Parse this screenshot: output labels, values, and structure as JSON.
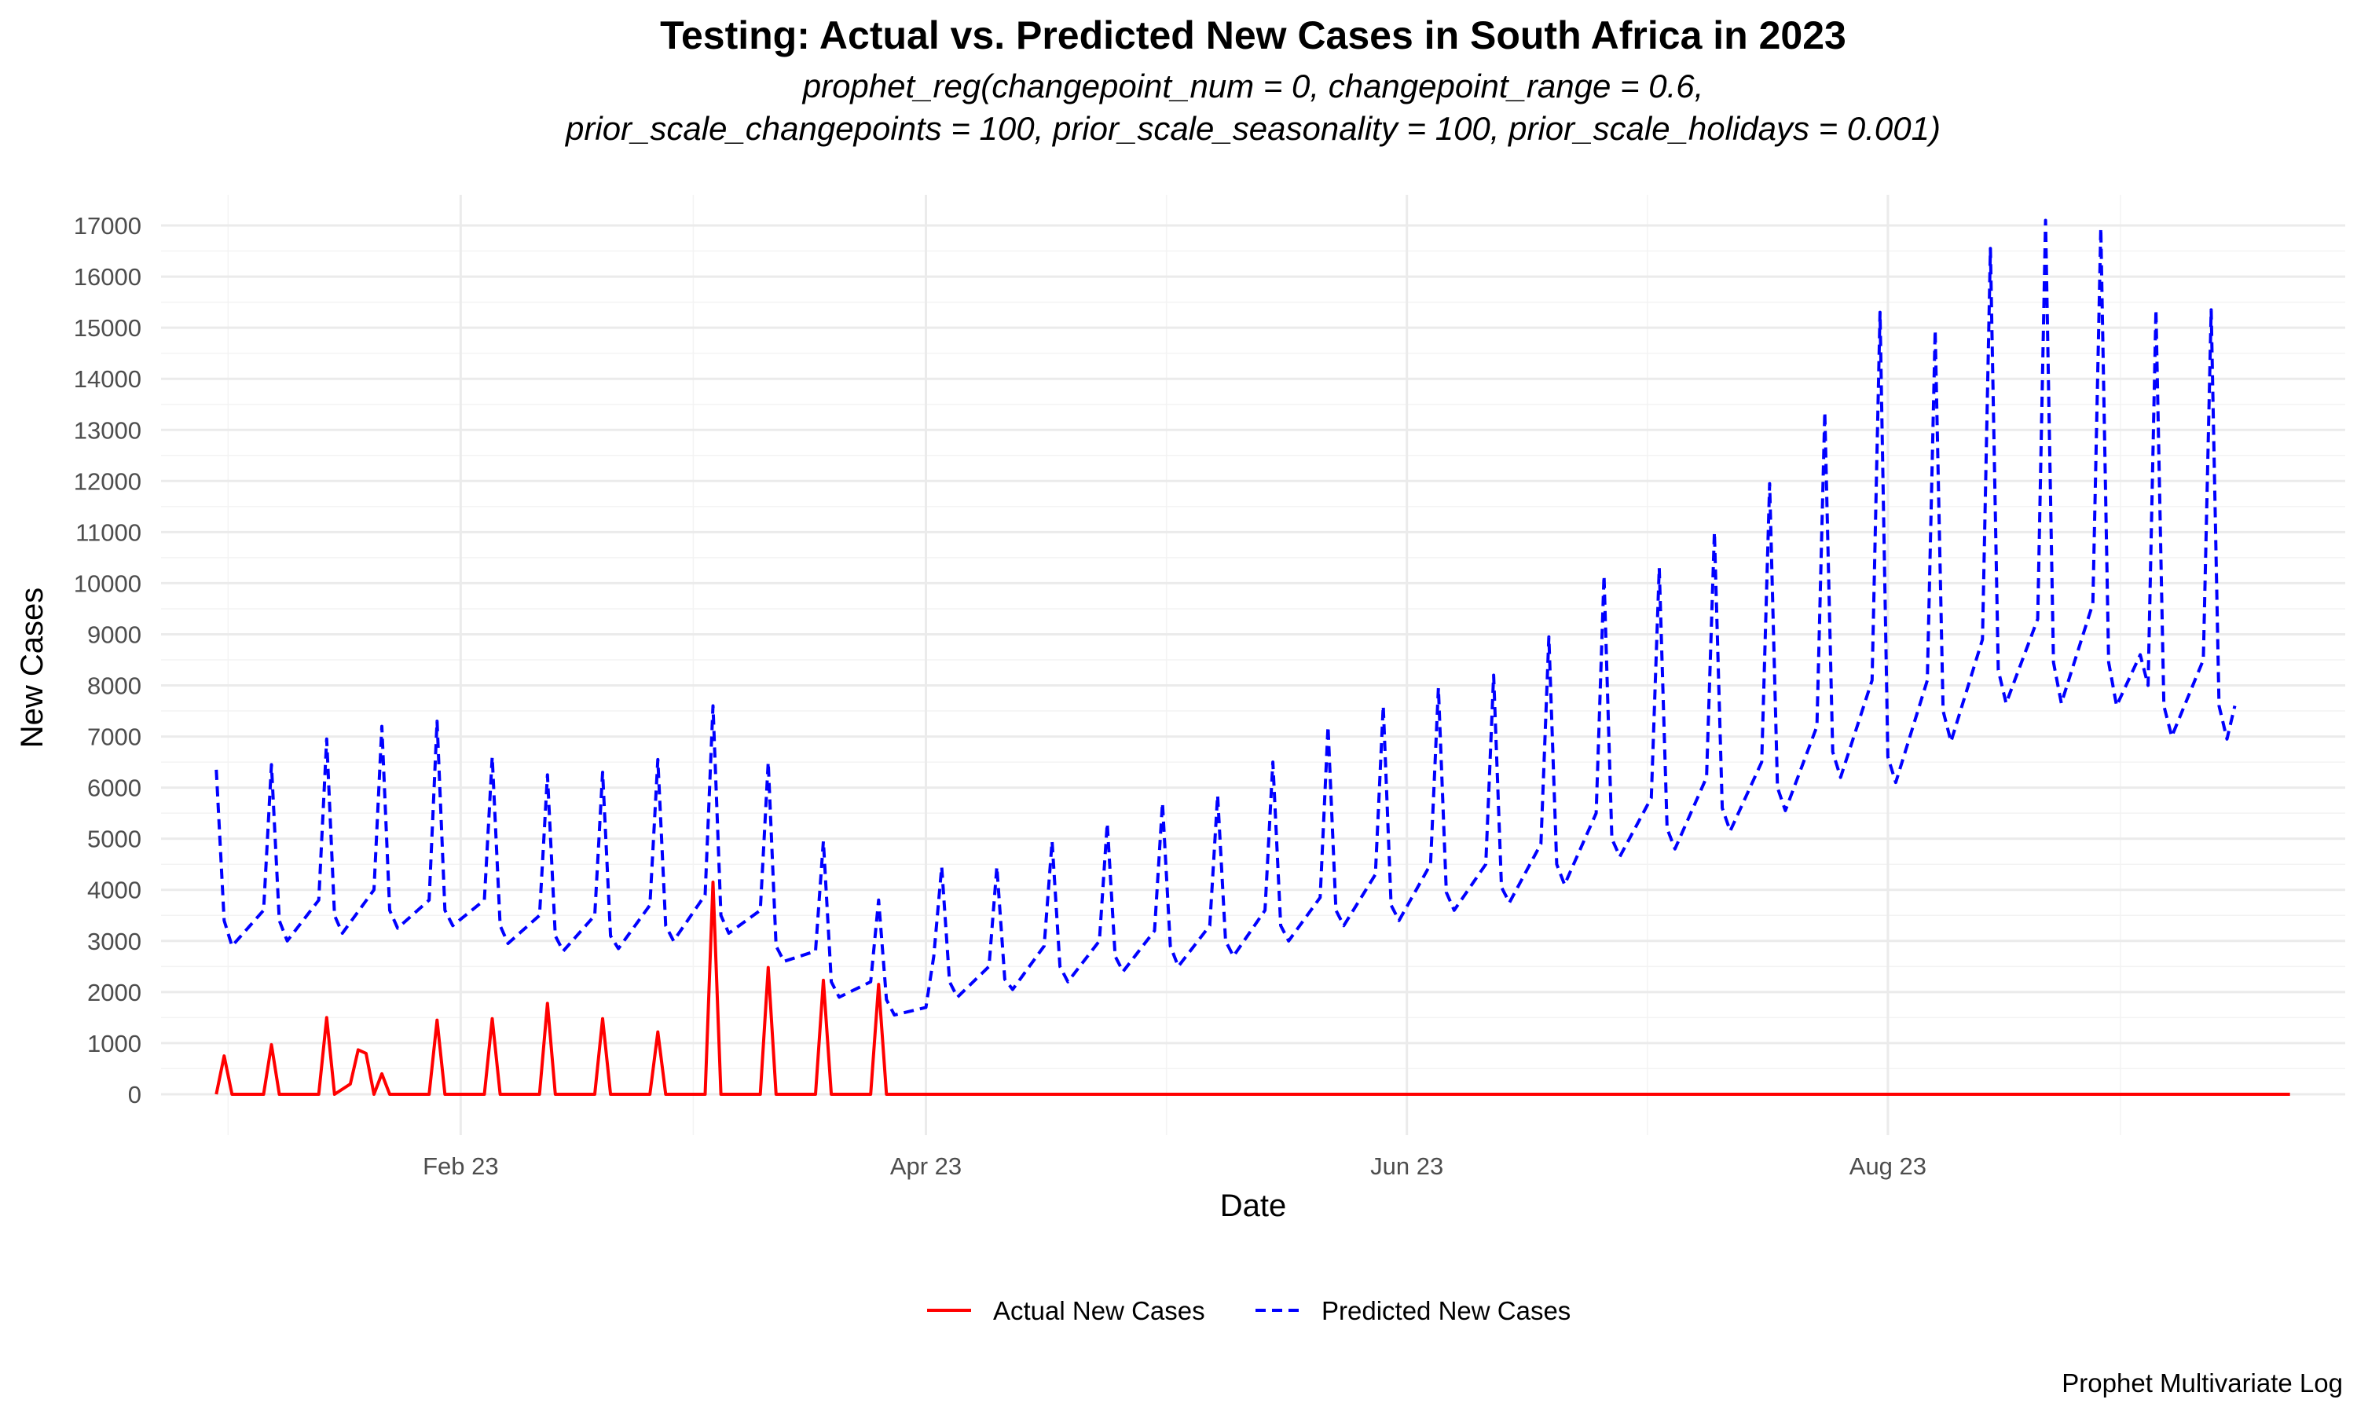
{
  "chart_data": {
    "type": "line",
    "title": "Testing: Actual vs. Predicted New Cases in South Africa in 2023",
    "subtitle_lines": [
      "prophet_reg(changepoint_num = 0, changepoint_range = 0.6,",
      "prior_scale_changepoints = 100, prior_scale_seasonality = 100, prior_scale_holidays = 0.001)"
    ],
    "xlabel": "Date",
    "ylabel": "New Cases",
    "caption": "Prophet Multivariate Log",
    "x_range": [
      "2022-12-25",
      "2023-09-28"
    ],
    "ylim": [
      -800,
      17600
    ],
    "x_ticks": [
      {
        "date": "2023-02-01",
        "label": "Feb 23"
      },
      {
        "date": "2023-04-01",
        "label": "Apr 23"
      },
      {
        "date": "2023-06-01",
        "label": "Jun 23"
      },
      {
        "date": "2023-08-01",
        "label": "Aug 23"
      }
    ],
    "y_ticks": [
      0,
      1000,
      2000,
      3000,
      4000,
      5000,
      6000,
      7000,
      8000,
      9000,
      10000,
      11000,
      12000,
      13000,
      14000,
      15000,
      16000,
      17000
    ],
    "grid": true,
    "legend_position": "bottom",
    "series": [
      {
        "name": "Actual New Cases",
        "color": "#ff0000",
        "style": "solid",
        "points": [
          [
            "2023-01-01",
            0
          ],
          [
            "2023-01-02",
            750
          ],
          [
            "2023-01-03",
            0
          ],
          [
            "2023-01-07",
            0
          ],
          [
            "2023-01-08",
            970
          ],
          [
            "2023-01-09",
            0
          ],
          [
            "2023-01-14",
            0
          ],
          [
            "2023-01-15",
            1500
          ],
          [
            "2023-01-16",
            0
          ],
          [
            "2023-01-18",
            200
          ],
          [
            "2023-01-19",
            870
          ],
          [
            "2023-01-20",
            800
          ],
          [
            "2023-01-21",
            0
          ],
          [
            "2023-01-22",
            400
          ],
          [
            "2023-01-23",
            0
          ],
          [
            "2023-01-28",
            0
          ],
          [
            "2023-01-29",
            1450
          ],
          [
            "2023-01-30",
            0
          ],
          [
            "2023-02-04",
            0
          ],
          [
            "2023-02-05",
            1480
          ],
          [
            "2023-02-06",
            0
          ],
          [
            "2023-02-11",
            0
          ],
          [
            "2023-02-12",
            1780
          ],
          [
            "2023-02-13",
            0
          ],
          [
            "2023-02-18",
            0
          ],
          [
            "2023-02-19",
            1480
          ],
          [
            "2023-02-20",
            0
          ],
          [
            "2023-02-25",
            0
          ],
          [
            "2023-02-26",
            1220
          ],
          [
            "2023-02-27",
            0
          ],
          [
            "2023-03-04",
            0
          ],
          [
            "2023-03-05",
            4150
          ],
          [
            "2023-03-06",
            0
          ],
          [
            "2023-03-11",
            0
          ],
          [
            "2023-03-12",
            2480
          ],
          [
            "2023-03-13",
            0
          ],
          [
            "2023-03-18",
            0
          ],
          [
            "2023-03-19",
            2230
          ],
          [
            "2023-03-20",
            0
          ],
          [
            "2023-03-25",
            0
          ],
          [
            "2023-03-26",
            2150
          ],
          [
            "2023-03-27",
            0
          ],
          [
            "2023-09-21",
            0
          ]
        ]
      },
      {
        "name": "Predicted New Cases",
        "color": "#0000ff",
        "style": "dashed",
        "points": [
          [
            "2023-01-01",
            6350
          ],
          [
            "2023-01-02",
            3400
          ],
          [
            "2023-01-03",
            2900
          ],
          [
            "2023-01-07",
            3600
          ],
          [
            "2023-01-08",
            6450
          ],
          [
            "2023-01-09",
            3400
          ],
          [
            "2023-01-10",
            3000
          ],
          [
            "2023-01-14",
            3800
          ],
          [
            "2023-01-15",
            6950
          ],
          [
            "2023-01-16",
            3500
          ],
          [
            "2023-01-17",
            3150
          ],
          [
            "2023-01-21",
            4000
          ],
          [
            "2023-01-22",
            7200
          ],
          [
            "2023-01-23",
            3600
          ],
          [
            "2023-01-24",
            3250
          ],
          [
            "2023-01-28",
            3800
          ],
          [
            "2023-01-29",
            7300
          ],
          [
            "2023-01-30",
            3600
          ],
          [
            "2023-01-31",
            3300
          ],
          [
            "2023-02-04",
            3800
          ],
          [
            "2023-02-05",
            6600
          ],
          [
            "2023-02-06",
            3300
          ],
          [
            "2023-02-07",
            2950
          ],
          [
            "2023-02-11",
            3500
          ],
          [
            "2023-02-12",
            6250
          ],
          [
            "2023-02-13",
            3100
          ],
          [
            "2023-02-14",
            2800
          ],
          [
            "2023-02-18",
            3500
          ],
          [
            "2023-02-19",
            6300
          ],
          [
            "2023-02-20",
            3100
          ],
          [
            "2023-02-21",
            2850
          ],
          [
            "2023-02-25",
            3700
          ],
          [
            "2023-02-26",
            6550
          ],
          [
            "2023-02-27",
            3300
          ],
          [
            "2023-02-28",
            3000
          ],
          [
            "2023-03-04",
            3900
          ],
          [
            "2023-03-05",
            7600
          ],
          [
            "2023-03-06",
            3500
          ],
          [
            "2023-03-07",
            3150
          ],
          [
            "2023-03-11",
            3600
          ],
          [
            "2023-03-12",
            6500
          ],
          [
            "2023-03-13",
            2900
          ],
          [
            "2023-03-14",
            2600
          ],
          [
            "2023-03-18",
            2800
          ],
          [
            "2023-03-19",
            4950
          ],
          [
            "2023-03-20",
            2200
          ],
          [
            "2023-03-21",
            1900
          ],
          [
            "2023-03-25",
            2200
          ],
          [
            "2023-03-26",
            3800
          ],
          [
            "2023-03-27",
            1850
          ],
          [
            "2023-03-28",
            1550
          ],
          [
            "2023-04-01",
            1700
          ],
          [
            "2023-04-02",
            2700
          ],
          [
            "2023-04-03",
            4450
          ],
          [
            "2023-04-04",
            2200
          ],
          [
            "2023-04-05",
            1900
          ],
          [
            "2023-04-09",
            2500
          ],
          [
            "2023-04-10",
            4450
          ],
          [
            "2023-04-11",
            2250
          ],
          [
            "2023-04-12",
            2050
          ],
          [
            "2023-04-16",
            2900
          ],
          [
            "2023-04-17",
            4950
          ],
          [
            "2023-04-18",
            2500
          ],
          [
            "2023-04-19",
            2200
          ],
          [
            "2023-04-23",
            3000
          ],
          [
            "2023-04-24",
            5300
          ],
          [
            "2023-04-25",
            2700
          ],
          [
            "2023-04-26",
            2400
          ],
          [
            "2023-04-30",
            3200
          ],
          [
            "2023-05-01",
            5700
          ],
          [
            "2023-05-02",
            2900
          ],
          [
            "2023-05-03",
            2500
          ],
          [
            "2023-05-07",
            3300
          ],
          [
            "2023-05-08",
            5850
          ],
          [
            "2023-05-09",
            3000
          ],
          [
            "2023-05-10",
            2700
          ],
          [
            "2023-05-14",
            3600
          ],
          [
            "2023-05-15",
            6500
          ],
          [
            "2023-05-16",
            3300
          ],
          [
            "2023-05-17",
            3000
          ],
          [
            "2023-05-21",
            3850
          ],
          [
            "2023-05-22",
            7200
          ],
          [
            "2023-05-23",
            3600
          ],
          [
            "2023-05-24",
            3300
          ],
          [
            "2023-05-28",
            4300
          ],
          [
            "2023-05-29",
            7600
          ],
          [
            "2023-05-30",
            3700
          ],
          [
            "2023-05-31",
            3400
          ],
          [
            "2023-06-04",
            4500
          ],
          [
            "2023-06-05",
            7950
          ],
          [
            "2023-06-06",
            3950
          ],
          [
            "2023-06-07",
            3600
          ],
          [
            "2023-06-11",
            4500
          ],
          [
            "2023-06-12",
            8200
          ],
          [
            "2023-06-13",
            4050
          ],
          [
            "2023-06-14",
            3750
          ],
          [
            "2023-06-18",
            4900
          ],
          [
            "2023-06-19",
            8950
          ],
          [
            "2023-06-20",
            4500
          ],
          [
            "2023-06-21",
            4100
          ],
          [
            "2023-06-25",
            5500
          ],
          [
            "2023-06-26",
            10150
          ],
          [
            "2023-06-27",
            5000
          ],
          [
            "2023-06-28",
            4650
          ],
          [
            "2023-07-02",
            5800
          ],
          [
            "2023-07-03",
            10300
          ],
          [
            "2023-07-04",
            5200
          ],
          [
            "2023-07-05",
            4800
          ],
          [
            "2023-07-09",
            6200
          ],
          [
            "2023-07-10",
            11000
          ],
          [
            "2023-07-11",
            5600
          ],
          [
            "2023-07-12",
            5150
          ],
          [
            "2023-07-16",
            6500
          ],
          [
            "2023-07-17",
            11950
          ],
          [
            "2023-07-18",
            6000
          ],
          [
            "2023-07-19",
            5550
          ],
          [
            "2023-07-23",
            7200
          ],
          [
            "2023-07-24",
            13350
          ],
          [
            "2023-07-25",
            6700
          ],
          [
            "2023-07-26",
            6200
          ],
          [
            "2023-07-30",
            8100
          ],
          [
            "2023-07-31",
            15300
          ],
          [
            "2023-08-01",
            6600
          ],
          [
            "2023-08-02",
            6100
          ],
          [
            "2023-08-06",
            8100
          ],
          [
            "2023-08-07",
            14950
          ],
          [
            "2023-08-08",
            7500
          ],
          [
            "2023-08-09",
            6900
          ],
          [
            "2023-08-13",
            8900
          ],
          [
            "2023-08-14",
            16550
          ],
          [
            "2023-08-15",
            8300
          ],
          [
            "2023-08-16",
            7650
          ],
          [
            "2023-08-20",
            9300
          ],
          [
            "2023-08-21",
            17100
          ],
          [
            "2023-08-22",
            8450
          ],
          [
            "2023-08-23",
            7650
          ],
          [
            "2023-08-27",
            9600
          ],
          [
            "2023-08-28",
            16950
          ],
          [
            "2023-08-29",
            8450
          ],
          [
            "2023-08-30",
            7600
          ],
          [
            "2023-09-02",
            8600
          ],
          [
            "2023-09-03",
            8000
          ],
          [
            "2023-09-04",
            15350
          ],
          [
            "2023-09-05",
            7600
          ],
          [
            "2023-09-06",
            7000
          ],
          [
            "2023-09-10",
            8500
          ],
          [
            "2023-09-11",
            15350
          ],
          [
            "2023-09-12",
            7600
          ],
          [
            "2023-09-13",
            6950
          ],
          [
            "2023-09-14",
            7600
          ]
        ]
      }
    ]
  }
}
